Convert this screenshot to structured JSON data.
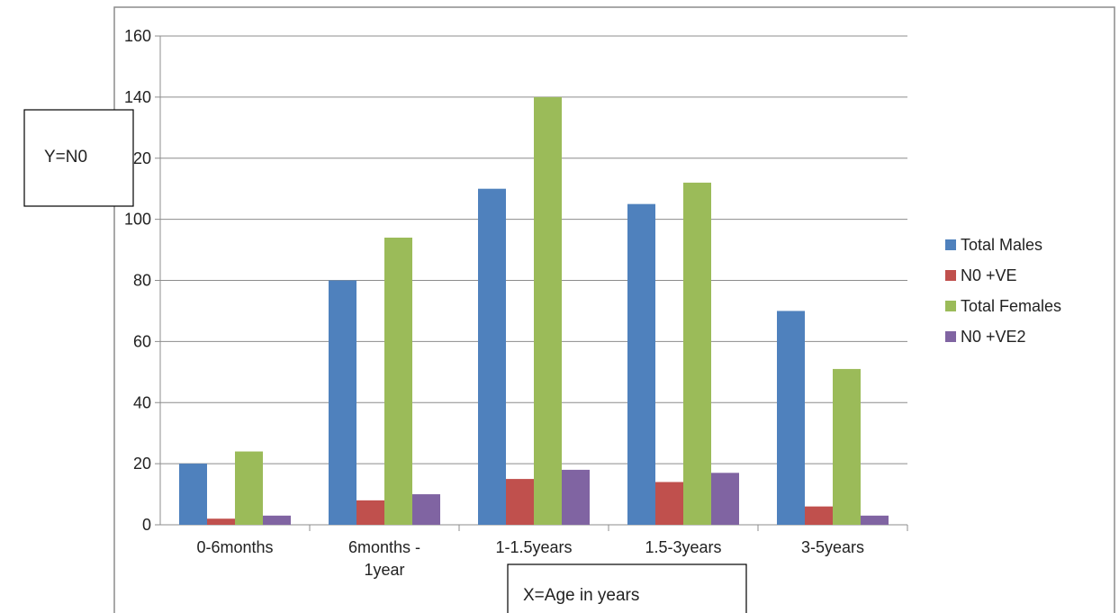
{
  "chart_data": {
    "type": "bar",
    "categories": [
      [
        "0-6months"
      ],
      [
        "6months -",
        "1year"
      ],
      [
        "1-1.5years"
      ],
      [
        "1.5-3years"
      ],
      [
        "3-5years"
      ]
    ],
    "series": [
      {
        "name": "Total Males",
        "color": "#4f81bd",
        "values": [
          20,
          80,
          110,
          105,
          70
        ]
      },
      {
        "name": "N0 +VE",
        "color": "#c0504d",
        "values": [
          2,
          8,
          15,
          14,
          6
        ]
      },
      {
        "name": "Total Females",
        "color": "#9bbb59",
        "values": [
          24,
          94,
          140,
          112,
          51
        ]
      },
      {
        "name": "N0 +VE2",
        "color": "#8064a2",
        "values": [
          3,
          10,
          18,
          17,
          3
        ]
      }
    ],
    "ylim": [
      0,
      160
    ],
    "yticks": [
      0,
      20,
      40,
      60,
      80,
      100,
      120,
      140,
      160
    ],
    "grid": true,
    "legend_position": "right"
  },
  "annotations": {
    "y_label": "Y=N0",
    "x_label": "X=Age in years"
  }
}
